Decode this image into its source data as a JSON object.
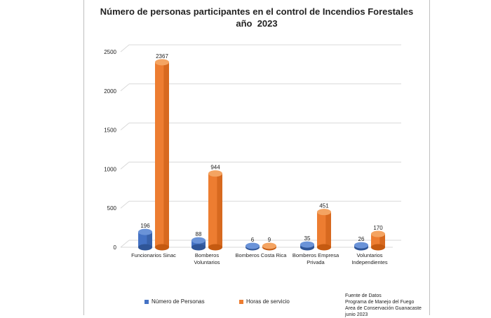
{
  "colors": {
    "series_0": "#4472c4",
    "series_0_dark": "#2f5597",
    "series_0_light": "#6a93d8",
    "series_1": "#ed7d31",
    "series_1_dark": "#c55a11",
    "series_1_light": "#f4a462",
    "grid": "#d9d9d9",
    "text": "#222222"
  },
  "chart_data": {
    "type": "bar",
    "title": "Número de personas participantes en el control de Incendios Forestales",
    "subtitle": "año  2023",
    "categories": [
      "Funcionarios Sinac",
      "Bomberos\nVoluntarios",
      "Bomberos Costa Rica",
      "Bomberos Empresa\nPrivada",
      "Voluntarios\nIndependientes"
    ],
    "series": [
      {
        "name": "Número de Personas",
        "values": [
          196,
          88,
          6,
          35,
          26
        ]
      },
      {
        "name": "Horas de servicio",
        "values": [
          2367,
          944,
          9,
          451,
          170
        ]
      }
    ],
    "ylim": [
      0,
      2500
    ],
    "yticks": [
      0,
      500,
      1000,
      1500,
      2000,
      2500
    ],
    "grid": true,
    "legend": "bottom"
  },
  "source": {
    "lines": [
      "Fuente de Datos",
      "Programa de Manejo del Fuego",
      "Area de Conservación Guanacaste",
      "junio 2023"
    ]
  }
}
